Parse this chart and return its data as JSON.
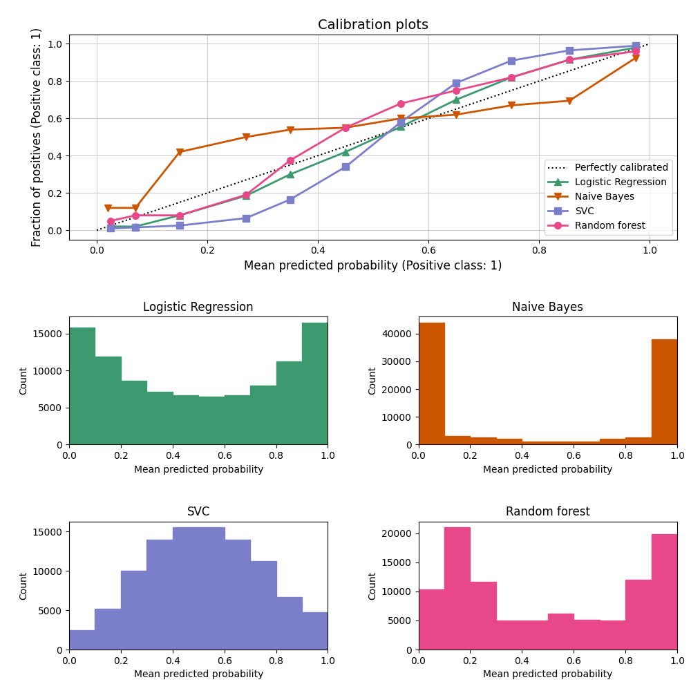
{
  "title": "Calibration plots",
  "xlabel_top": "Mean predicted probability (Positive class: 1)",
  "ylabel_top": "Fraction of positives (Positive class: 1)",
  "perfectly_calibrated": {
    "x": [
      0.0,
      1.0
    ],
    "y": [
      0.0,
      1.0
    ]
  },
  "logistic_regression": {
    "x": [
      0.025,
      0.07,
      0.15,
      0.27,
      0.35,
      0.45,
      0.55,
      0.65,
      0.75,
      0.855,
      0.975
    ],
    "y": [
      0.02,
      0.02,
      0.08,
      0.185,
      0.3,
      0.42,
      0.555,
      0.7,
      0.82,
      0.915,
      0.98
    ],
    "color": "#3d9970",
    "marker": "^",
    "label": "Logistic Regression"
  },
  "naive_bayes": {
    "x": [
      0.02,
      0.07,
      0.15,
      0.27,
      0.35,
      0.45,
      0.55,
      0.65,
      0.75,
      0.855,
      0.975
    ],
    "y": [
      0.12,
      0.12,
      0.42,
      0.5,
      0.54,
      0.55,
      0.6,
      0.62,
      0.67,
      0.695,
      0.925
    ],
    "color": "#cc5500",
    "marker": "v",
    "label": "Naive Bayes"
  },
  "svc": {
    "x": [
      0.025,
      0.07,
      0.15,
      0.27,
      0.35,
      0.45,
      0.55,
      0.65,
      0.75,
      0.855,
      0.975
    ],
    "y": [
      0.01,
      0.015,
      0.025,
      0.065,
      0.165,
      0.34,
      0.58,
      0.79,
      0.91,
      0.965,
      0.99
    ],
    "color": "#7b7ec8",
    "marker": "s",
    "label": "SVC"
  },
  "random_forest": {
    "x": [
      0.025,
      0.07,
      0.15,
      0.27,
      0.35,
      0.45,
      0.55,
      0.65,
      0.75,
      0.855,
      0.975
    ],
    "y": [
      0.05,
      0.08,
      0.08,
      0.19,
      0.375,
      0.55,
      0.68,
      0.75,
      0.82,
      0.915,
      0.96
    ],
    "color": "#e8488a",
    "marker": "o",
    "label": "Random forest"
  },
  "hist_lr": {
    "bin_edges": [
      0.0,
      0.1,
      0.2,
      0.3,
      0.4,
      0.5,
      0.6,
      0.7,
      0.8,
      0.9,
      1.0
    ],
    "counts": [
      15800,
      11900,
      8600,
      7100,
      6700,
      6500,
      6700,
      8000,
      11200,
      16500
    ],
    "color": "#3d9970",
    "title": "Logistic Regression",
    "xlabel": "Mean predicted probability",
    "ylabel": "Count"
  },
  "hist_nb": {
    "bin_edges": [
      0.0,
      0.1,
      0.2,
      0.3,
      0.4,
      0.5,
      0.6,
      0.7,
      0.8,
      0.9,
      1.0
    ],
    "counts": [
      44000,
      3100,
      2600,
      2200,
      1200,
      1100,
      1200,
      2000,
      2600,
      38000
    ],
    "color": "#cc5500",
    "title": "Naive Bayes",
    "xlabel": "Mean predicted probability",
    "ylabel": "Count"
  },
  "hist_svc": {
    "bin_edges": [
      0.0,
      0.1,
      0.2,
      0.3,
      0.4,
      0.5,
      0.6,
      0.7,
      0.8,
      0.9,
      1.0
    ],
    "counts": [
      2500,
      5200,
      10000,
      14000,
      15500,
      15500,
      14000,
      11200,
      6700,
      4700
    ],
    "color": "#7b7ec8",
    "title": "SVC",
    "xlabel": "Mean predicted probability",
    "ylabel": "Count"
  },
  "hist_rf": {
    "bin_edges": [
      0.0,
      0.1,
      0.2,
      0.3,
      0.4,
      0.5,
      0.6,
      0.7,
      0.8,
      0.9,
      1.0
    ],
    "counts": [
      10300,
      21000,
      11600,
      5000,
      5000,
      6200,
      5100,
      5000,
      12000,
      19900
    ],
    "color": "#e8488a",
    "title": "Random forest",
    "xlabel": "Mean predicted probability",
    "ylabel": "Count"
  },
  "background_color": "#ffffff",
  "grid_color": "#cccccc"
}
